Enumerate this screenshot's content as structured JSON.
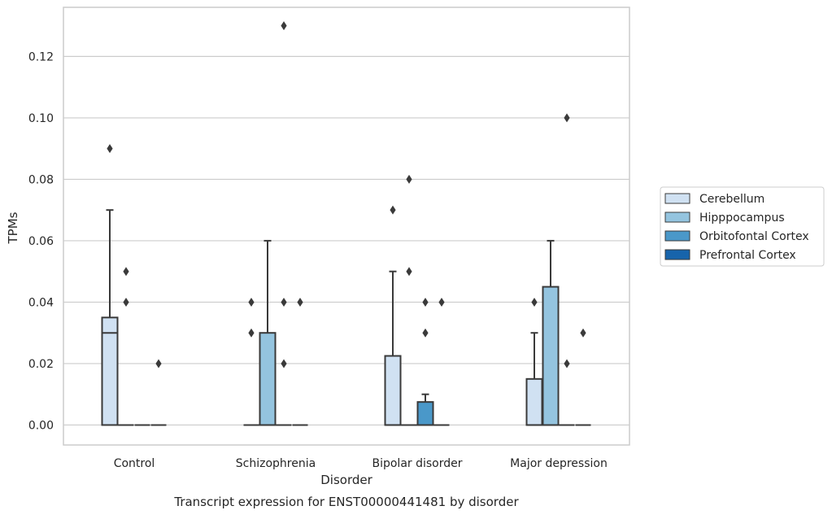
{
  "caption": "Transcript expression for ENST00000441481 by disorder",
  "chart_data": {
    "type": "box",
    "xlabel": "Disorder",
    "ylabel": "TPMs",
    "categories": [
      "Control",
      "Schizophrenia",
      "Bipolar disorder",
      "Major depression"
    ],
    "ylim": [
      -0.0065,
      0.136
    ],
    "yticks": [
      0.0,
      0.02,
      0.04,
      0.06,
      0.08,
      0.1,
      0.12
    ],
    "ytick_labels": [
      "0.00",
      "0.02",
      "0.04",
      "0.06",
      "0.08",
      "0.10",
      "0.12"
    ],
    "grid": true,
    "legend_position": "right",
    "series": [
      {
        "name": "Cerebellum",
        "color": "#d0e1f2",
        "boxes": [
          {
            "q1": 0.0,
            "median": 0.03,
            "q3": 0.035,
            "whisker_low": 0.0,
            "whisker_high": 0.07,
            "outliers": [
              0.09
            ]
          },
          {
            "q1": 0.0,
            "median": 0.0,
            "q3": 0.0,
            "whisker_low": 0.0,
            "whisker_high": 0.0,
            "outliers": [
              0.03,
              0.04
            ]
          },
          {
            "q1": 0.0,
            "median": 0.0,
            "q3": 0.0225,
            "whisker_low": 0.0,
            "whisker_high": 0.05,
            "outliers": [
              0.07
            ]
          },
          {
            "q1": 0.0,
            "median": 0.0,
            "q3": 0.015,
            "whisker_low": 0.0,
            "whisker_high": 0.03,
            "outliers": [
              0.04
            ]
          }
        ]
      },
      {
        "name": "Hipppocampus",
        "color": "#94c4df",
        "boxes": [
          {
            "q1": 0.0,
            "median": 0.0,
            "q3": 0.0,
            "whisker_low": 0.0,
            "whisker_high": 0.0,
            "outliers": [
              0.04,
              0.05
            ]
          },
          {
            "q1": 0.0,
            "median": 0.0,
            "q3": 0.03,
            "whisker_low": 0.0,
            "whisker_high": 0.06,
            "outliers": []
          },
          {
            "q1": 0.0,
            "median": 0.0,
            "q3": 0.0,
            "whisker_low": 0.0,
            "whisker_high": 0.0,
            "outliers": [
              0.05,
              0.08
            ]
          },
          {
            "q1": 0.0,
            "median": 0.0,
            "q3": 0.045,
            "whisker_low": 0.0,
            "whisker_high": 0.06,
            "outliers": []
          }
        ]
      },
      {
        "name": "Orbitofontal Cortex",
        "color": "#4a98c9",
        "boxes": [
          {
            "q1": 0.0,
            "median": 0.0,
            "q3": 0.0,
            "whisker_low": 0.0,
            "whisker_high": 0.0,
            "outliers": []
          },
          {
            "q1": 0.0,
            "median": 0.0,
            "q3": 0.0,
            "whisker_low": 0.0,
            "whisker_high": 0.0,
            "outliers": [
              0.02,
              0.04,
              0.13
            ]
          },
          {
            "q1": 0.0,
            "median": 0.0,
            "q3": 0.0075,
            "whisker_low": 0.0,
            "whisker_high": 0.01,
            "outliers": [
              0.03,
              0.04
            ]
          },
          {
            "q1": 0.0,
            "median": 0.0,
            "q3": 0.0,
            "whisker_low": 0.0,
            "whisker_high": 0.0,
            "outliers": [
              0.02,
              0.1
            ]
          }
        ]
      },
      {
        "name": "Prefrontal Cortex",
        "color": "#1764ab",
        "boxes": [
          {
            "q1": 0.0,
            "median": 0.0,
            "q3": 0.0,
            "whisker_low": 0.0,
            "whisker_high": 0.0,
            "outliers": [
              0.02
            ]
          },
          {
            "q1": 0.0,
            "median": 0.0,
            "q3": 0.0,
            "whisker_low": 0.0,
            "whisker_high": 0.0,
            "outliers": [
              0.04
            ]
          },
          {
            "q1": 0.0,
            "median": 0.0,
            "q3": 0.0,
            "whisker_low": 0.0,
            "whisker_high": 0.0,
            "outliers": [
              0.04
            ]
          },
          {
            "q1": 0.0,
            "median": 0.0,
            "q3": 0.0,
            "whisker_low": 0.0,
            "whisker_high": 0.0,
            "outliers": [
              0.03
            ]
          }
        ]
      }
    ]
  }
}
